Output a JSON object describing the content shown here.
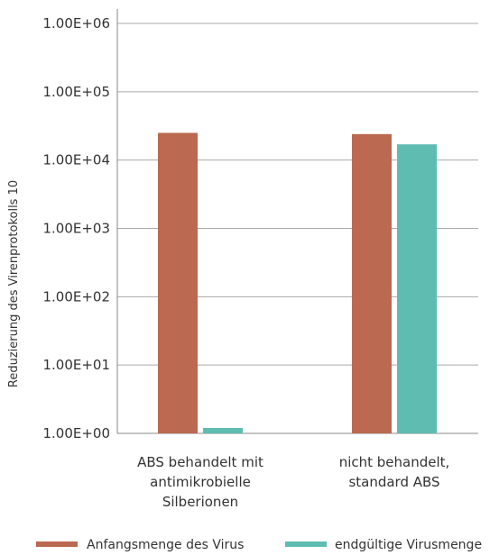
{
  "chart_data": {
    "type": "bar",
    "ylabel": "Reduzierung des Virenprotokolls 10",
    "yscale": "log",
    "ylim": [
      1,
      1000000
    ],
    "yticks": [
      {
        "value": 1,
        "label": "1.00E+00"
      },
      {
        "value": 10,
        "label": "1.00E+01"
      },
      {
        "value": 100,
        "label": "1.00E+02"
      },
      {
        "value": 1000,
        "label": "1.00E+03"
      },
      {
        "value": 10000,
        "label": "1.00E+04"
      },
      {
        "value": 100000,
        "label": "1.00E+05"
      },
      {
        "value": 1000000,
        "label": "1.00E+06"
      }
    ],
    "categories": [
      [
        "ABS behandelt mit",
        "antimikrobielle",
        "Silberionen"
      ],
      [
        "nicht behandelt,",
        "standard ABS"
      ]
    ],
    "series": [
      {
        "name": "Anfangsmenge des Virus",
        "color": "#bb6950",
        "values": [
          25000,
          24000
        ]
      },
      {
        "name": "endgültige Virusmenge",
        "color": "#5fbcb1",
        "values": [
          1.2,
          17000
        ]
      }
    ],
    "grid": true,
    "legend": "bottom"
  }
}
